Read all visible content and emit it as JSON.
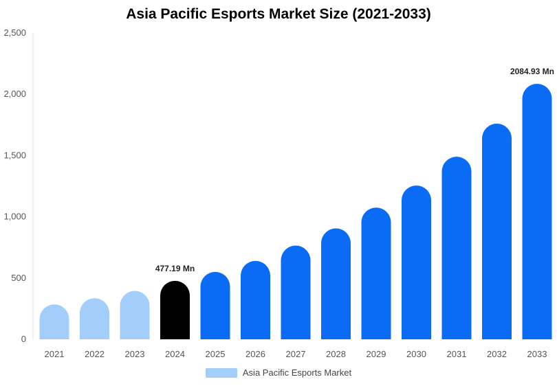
{
  "chart_data": {
    "type": "bar",
    "title": "Asia Pacific Esports Market Size (2021-2033)",
    "xlabel": "",
    "ylabel": "",
    "categories": [
      "2021",
      "2022",
      "2023",
      "2024",
      "2025",
      "2026",
      "2027",
      "2028",
      "2029",
      "2030",
      "2031",
      "2032",
      "2033"
    ],
    "series": [
      {
        "name": "Asia Pacific Esports Market",
        "values": [
          285,
          335,
          395,
          477.19,
          550,
          640,
          765,
          905,
          1075,
          1255,
          1490,
          1760,
          2084.93
        ]
      }
    ],
    "ylim": [
      0,
      2500
    ],
    "yticks": [
      0,
      500,
      1000,
      1500,
      2000,
      2500
    ],
    "ytick_labels": [
      "0",
      "500",
      "1,000",
      "1,500",
      "2,000",
      "2,500"
    ],
    "data_labels": [
      {
        "index": 3,
        "text": "477.19 Mn"
      },
      {
        "index": 12,
        "text": "2084.93 Mn"
      }
    ],
    "highlight_index": 3,
    "colors": {
      "historic": "#a3cdfb",
      "highlight": "#000000",
      "forecast": "#0a6cf5"
    },
    "historic_count": 3,
    "grid": false,
    "legend_position": "bottom"
  }
}
